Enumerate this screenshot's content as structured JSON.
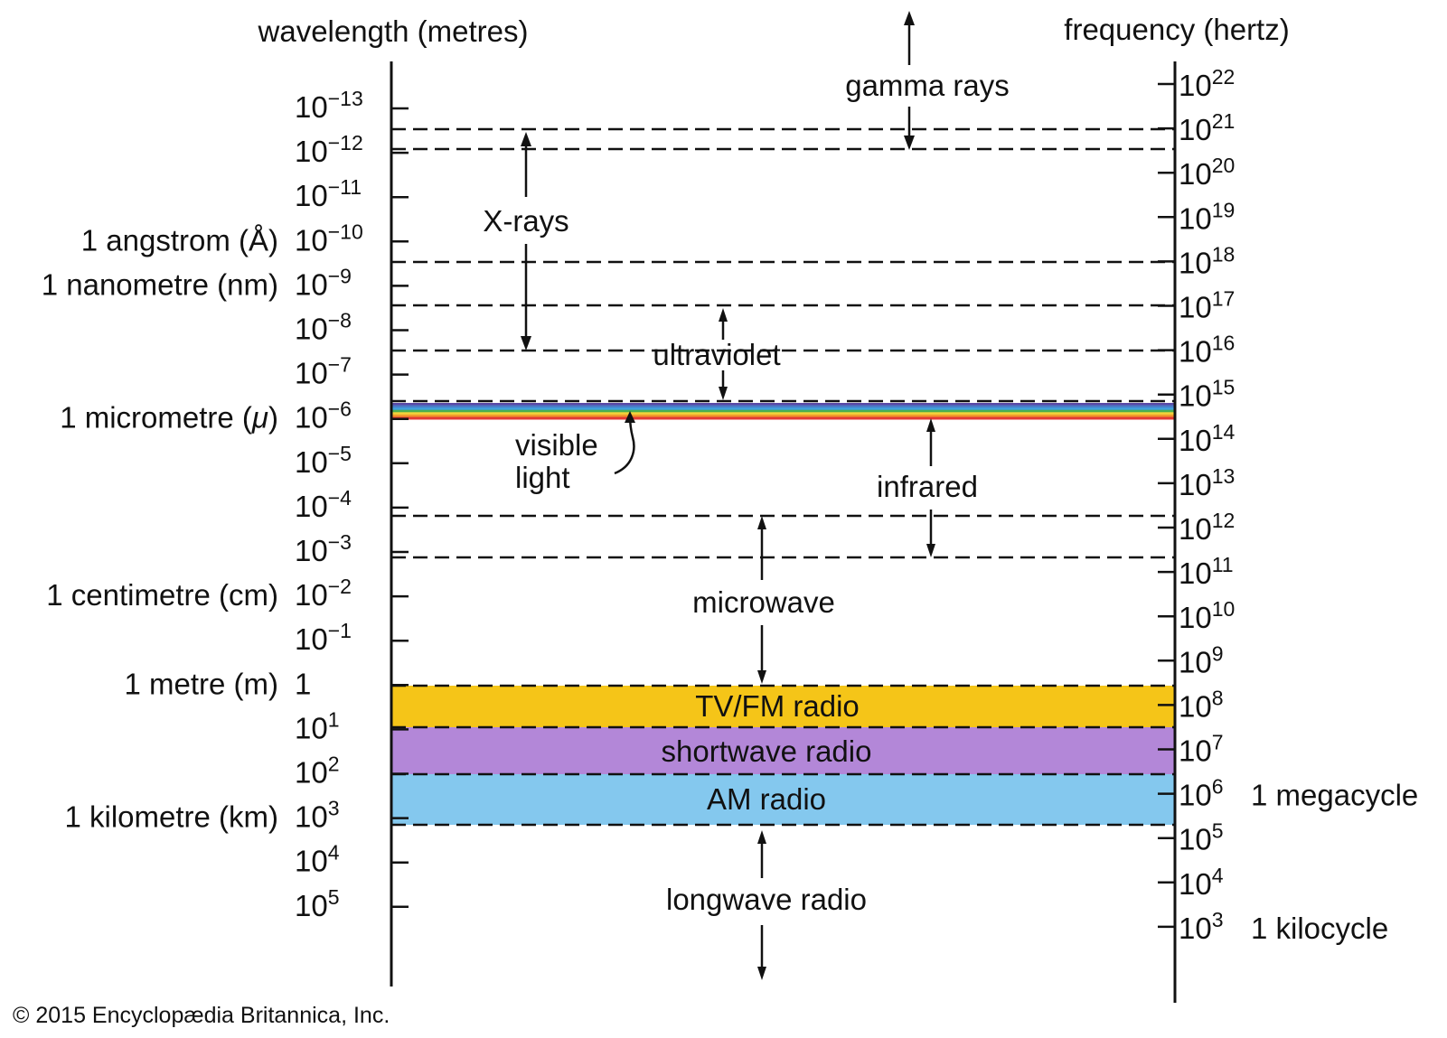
{
  "wavelength_axis": {
    "title": "wavelength (metres)",
    "ticks": [
      {
        "base": "10",
        "exp": "−13",
        "unit": ""
      },
      {
        "base": "10",
        "exp": "−12",
        "unit": ""
      },
      {
        "base": "10",
        "exp": "−11",
        "unit": ""
      },
      {
        "base": "10",
        "exp": "−10",
        "unit": "1 angstrom (Å)"
      },
      {
        "base": "10",
        "exp": "−9",
        "unit": "1 nanometre (nm)"
      },
      {
        "base": "10",
        "exp": "−8",
        "unit": ""
      },
      {
        "base": "10",
        "exp": "−7",
        "unit": ""
      },
      {
        "base": "10",
        "exp": "−6",
        "unit": "1 micrometre (μ)"
      },
      {
        "base": "10",
        "exp": "−5",
        "unit": ""
      },
      {
        "base": "10",
        "exp": "−4",
        "unit": ""
      },
      {
        "base": "10",
        "exp": "−3",
        "unit": ""
      },
      {
        "base": "10",
        "exp": "−2",
        "unit": "1 centimetre (cm)"
      },
      {
        "base": "10",
        "exp": "−1",
        "unit": ""
      },
      {
        "base": "1",
        "exp": "",
        "unit": "1 metre (m)"
      },
      {
        "base": "10",
        "exp": "1",
        "unit": ""
      },
      {
        "base": "10",
        "exp": "2",
        "unit": ""
      },
      {
        "base": "10",
        "exp": "3",
        "unit": "1 kilometre (km)"
      },
      {
        "base": "10",
        "exp": "4",
        "unit": ""
      },
      {
        "base": "10",
        "exp": "5",
        "unit": ""
      }
    ]
  },
  "frequency_axis": {
    "title": "frequency (hertz)",
    "ticks": [
      {
        "base": "10",
        "exp": "22",
        "unit": ""
      },
      {
        "base": "10",
        "exp": "21",
        "unit": ""
      },
      {
        "base": "10",
        "exp": "20",
        "unit": ""
      },
      {
        "base": "10",
        "exp": "19",
        "unit": ""
      },
      {
        "base": "10",
        "exp": "18",
        "unit": ""
      },
      {
        "base": "10",
        "exp": "17",
        "unit": ""
      },
      {
        "base": "10",
        "exp": "16",
        "unit": ""
      },
      {
        "base": "10",
        "exp": "15",
        "unit": ""
      },
      {
        "base": "10",
        "exp": "14",
        "unit": ""
      },
      {
        "base": "10",
        "exp": "13",
        "unit": ""
      },
      {
        "base": "10",
        "exp": "12",
        "unit": ""
      },
      {
        "base": "10",
        "exp": "11",
        "unit": ""
      },
      {
        "base": "10",
        "exp": "10",
        "unit": ""
      },
      {
        "base": "10",
        "exp": "9",
        "unit": ""
      },
      {
        "base": "10",
        "exp": "8",
        "unit": ""
      },
      {
        "base": "10",
        "exp": "7",
        "unit": ""
      },
      {
        "base": "10",
        "exp": "6",
        "unit": "1 megacycle"
      },
      {
        "base": "10",
        "exp": "5",
        "unit": ""
      },
      {
        "base": "10",
        "exp": "4",
        "unit": ""
      },
      {
        "base": "10",
        "exp": "3",
        "unit": "1 kilocycle"
      }
    ]
  },
  "regions": {
    "gamma": "gamma rays",
    "xrays": "X-rays",
    "ultraviolet": "ultraviolet",
    "visible_line1": "visible",
    "visible_line2": "light",
    "infrared": "infrared",
    "microwave": "microwave",
    "tv_fm": "TV/FM radio",
    "shortwave": "shortwave radio",
    "am": "AM radio",
    "longwave": "longwave radio"
  },
  "colors": {
    "tv_fm": "#f5c518",
    "shortwave": "#b387d8",
    "am": "#84c8ee",
    "spectrum": [
      "#5a4aa6",
      "#4a7cc8",
      "#3fa0dc",
      "#4caf50",
      "#f4d23a",
      "#f39a2b",
      "#e53935"
    ]
  },
  "copyright": "© 2015 Encyclopædia Britannica, Inc."
}
